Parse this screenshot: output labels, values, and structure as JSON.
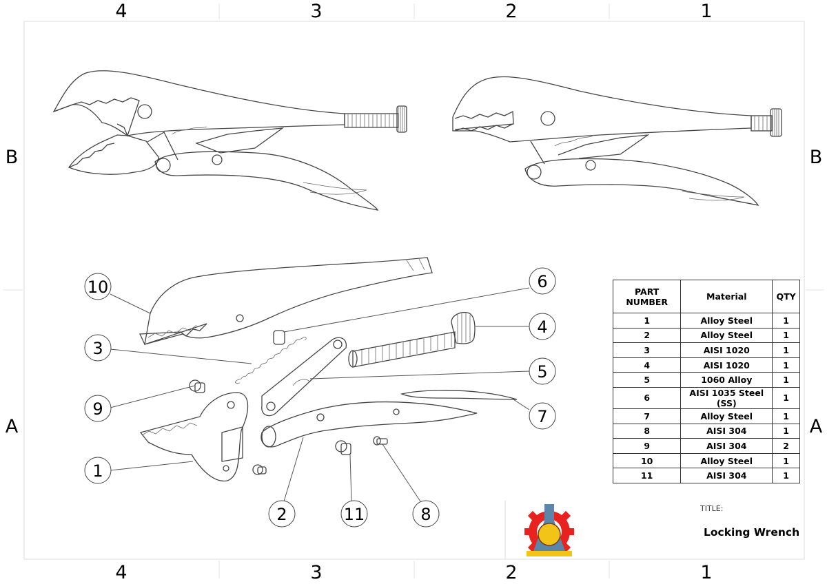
{
  "sheet": {
    "zones_top": [
      "4",
      "3",
      "2",
      "1"
    ],
    "zones_bottom": [
      "4",
      "3",
      "2",
      "1"
    ],
    "zones_left": [
      "B",
      "A"
    ],
    "zones_right": [
      "B",
      "A"
    ]
  },
  "balloons": [
    "10",
    "6",
    "4",
    "3",
    "5",
    "9",
    "7",
    "1",
    "2",
    "11",
    "8"
  ],
  "bom": {
    "headers": [
      "PART NUMBER",
      "Material",
      "QTY"
    ],
    "rows": [
      [
        "1",
        "Alloy Steel",
        "1"
      ],
      [
        "2",
        "Alloy Steel",
        "1"
      ],
      [
        "3",
        "AISI 1020",
        "1"
      ],
      [
        "4",
        "AISI 1020",
        "1"
      ],
      [
        "5",
        "1060 Alloy",
        "1"
      ],
      [
        "6",
        "AISI 1035 Steel (SS)",
        "1"
      ],
      [
        "7",
        "Alloy Steel",
        "1"
      ],
      [
        "8",
        "AISI 304",
        "1"
      ],
      [
        "9",
        "AISI 304",
        "2"
      ],
      [
        "10",
        "Alloy Steel",
        "1"
      ],
      [
        "11",
        "AISI 304",
        "1"
      ]
    ]
  },
  "title_block": {
    "label": "TITLE:",
    "value": "Locking Wrench"
  },
  "colors": {
    "logo_gear": "#e8231f",
    "logo_flask": "#5b86a8",
    "logo_emblem": "#f2c418"
  }
}
